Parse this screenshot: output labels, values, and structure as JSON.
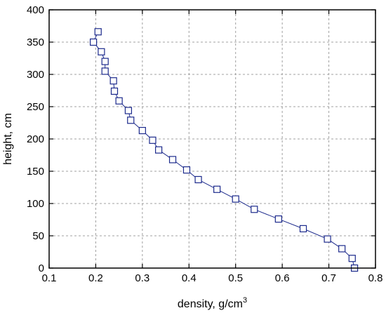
{
  "chart_data": {
    "type": "line",
    "xlabel": "density, g/cm",
    "xlabel_superscript": "3",
    "ylabel": "height, cm",
    "xlim": [
      0.1,
      0.8
    ],
    "ylim": [
      0,
      400
    ],
    "xticks": [
      "0.1",
      "0.2",
      "0.3",
      "0.4",
      "0.5",
      "0.6",
      "0.7",
      "0.8"
    ],
    "yticks": [
      "0",
      "50",
      "100",
      "150",
      "200",
      "250",
      "300",
      "350",
      "400"
    ],
    "grid": true,
    "marker": "open-square",
    "series": [
      {
        "x": [
          0.755,
          0.75,
          0.728,
          0.697,
          0.645,
          0.592,
          0.54,
          0.5,
          0.46,
          0.42,
          0.395,
          0.365,
          0.335,
          0.322,
          0.3,
          0.275,
          0.27,
          0.25,
          0.24,
          0.238,
          0.22,
          0.22,
          0.212,
          0.195,
          0.205
        ],
        "y": [
          0,
          15,
          30,
          45,
          61,
          76,
          91,
          107,
          122,
          137,
          152,
          168,
          183,
          198,
          213,
          229,
          244,
          259,
          274,
          290,
          305,
          320,
          335,
          350,
          366
        ]
      }
    ],
    "colors": {
      "series": "#1c2a8c",
      "grid": "#a0a0a0",
      "axis": "#000000"
    }
  }
}
